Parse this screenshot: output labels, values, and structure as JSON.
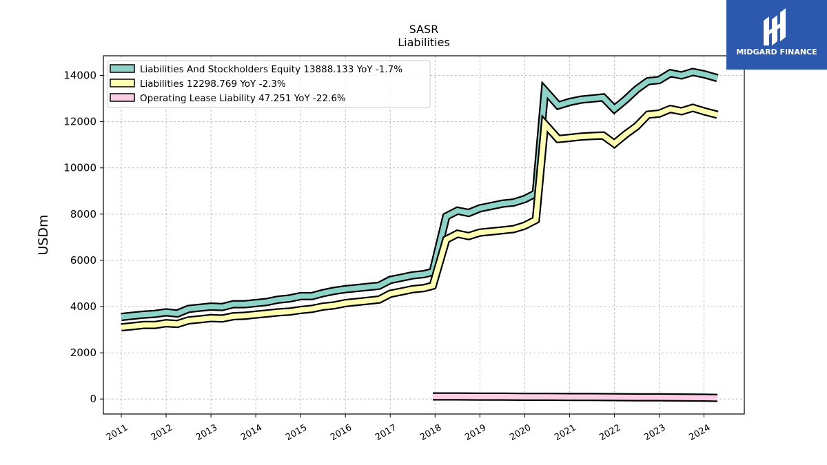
{
  "chart_data": {
    "type": "line",
    "title": "SASR",
    "subtitle": "Liabilities",
    "ylabel": "USDm",
    "xlabel": "",
    "xlim": [
      2010.6,
      2024.9
    ],
    "ylim": [
      -650,
      14850
    ],
    "yticks": [
      0,
      2000,
      4000,
      6000,
      8000,
      10000,
      12000,
      14000
    ],
    "xticks": [
      "2011",
      "2012",
      "2013",
      "2014",
      "2015",
      "2016",
      "2017",
      "2018",
      "2019",
      "2020",
      "2021",
      "2022",
      "2023",
      "2024"
    ],
    "grid": true,
    "legend_position": "top-left",
    "series": [
      {
        "name": "Liabilities And Stockholders Equity",
        "legend_value": "13888.133",
        "legend_yoy": "YoY -1.7%",
        "color": "#8dd3c7",
        "x": [
          2011.0,
          2011.25,
          2011.5,
          2011.75,
          2012.0,
          2012.25,
          2012.5,
          2012.75,
          2013.0,
          2013.25,
          2013.5,
          2013.75,
          2014.0,
          2014.25,
          2014.5,
          2014.75,
          2015.0,
          2015.25,
          2015.5,
          2015.75,
          2016.0,
          2016.25,
          2016.5,
          2016.75,
          2017.0,
          2017.25,
          2017.5,
          2017.75,
          2017.95,
          2018.25,
          2018.5,
          2018.75,
          2019.0,
          2019.25,
          2019.5,
          2019.75,
          2020.0,
          2020.25,
          2020.45,
          2020.75,
          2021.0,
          2021.25,
          2021.5,
          2021.75,
          2022.0,
          2022.25,
          2022.5,
          2022.75,
          2023.0,
          2023.25,
          2023.5,
          2023.75,
          2024.0,
          2024.3
        ],
        "values": [
          3550,
          3600,
          3650,
          3680,
          3750,
          3700,
          3900,
          3950,
          4000,
          3980,
          4100,
          4100,
          4150,
          4200,
          4300,
          4350,
          4450,
          4450,
          4580,
          4680,
          4750,
          4800,
          4850,
          4900,
          5150,
          5250,
          5350,
          5400,
          5500,
          7900,
          8150,
          8050,
          8250,
          8350,
          8450,
          8500,
          8650,
          8900,
          13350,
          12700,
          12850,
          12950,
          13000,
          13050,
          12550,
          12950,
          13400,
          13750,
          13800,
          14100,
          14000,
          14150,
          14050,
          13888
        ]
      },
      {
        "name": "Liabilities",
        "legend_value": "12298.769",
        "legend_yoy": "YoY -2.3%",
        "color": "#ffffb3",
        "x": [
          2011.0,
          2011.25,
          2011.5,
          2011.75,
          2012.0,
          2012.25,
          2012.5,
          2012.75,
          2013.0,
          2013.25,
          2013.5,
          2013.75,
          2014.0,
          2014.25,
          2014.5,
          2014.75,
          2015.0,
          2015.25,
          2015.5,
          2015.75,
          2016.0,
          2016.25,
          2016.5,
          2016.75,
          2017.0,
          2017.25,
          2017.5,
          2017.75,
          2017.95,
          2018.25,
          2018.5,
          2018.75,
          2019.0,
          2019.25,
          2019.5,
          2019.75,
          2020.0,
          2020.25,
          2020.45,
          2020.75,
          2021.0,
          2021.25,
          2021.5,
          2021.75,
          2022.0,
          2022.25,
          2022.5,
          2022.75,
          2023.0,
          2023.25,
          2023.5,
          2023.75,
          2024.0,
          2024.3
        ],
        "values": [
          3100,
          3150,
          3200,
          3200,
          3280,
          3250,
          3400,
          3450,
          3500,
          3480,
          3580,
          3600,
          3650,
          3700,
          3750,
          3780,
          3850,
          3900,
          4000,
          4050,
          4150,
          4200,
          4250,
          4300,
          4550,
          4650,
          4750,
          4800,
          4900,
          6900,
          7150,
          7050,
          7200,
          7250,
          7300,
          7350,
          7500,
          7750,
          11900,
          11250,
          11300,
          11350,
          11380,
          11400,
          11050,
          11450,
          11800,
          12300,
          12350,
          12550,
          12450,
          12600,
          12450,
          12299
        ]
      },
      {
        "name": "Operating Lease Liability",
        "legend_value": "47.251",
        "legend_yoy": "YoY -22.6%",
        "color": "#fccde5",
        "x": [
          2017.95,
          2018.5,
          2019.0,
          2019.5,
          2020.0,
          2020.5,
          2021.0,
          2021.5,
          2022.0,
          2022.5,
          2023.0,
          2023.5,
          2024.0,
          2024.3
        ],
        "values": [
          110,
          110,
          105,
          100,
          95,
          95,
          90,
          85,
          80,
          75,
          70,
          65,
          55,
          47
        ]
      }
    ]
  },
  "legend": {
    "entries": [
      "Liabilities And Stockholders Equity  13888.133 YoY -1.7%",
      "Liabilities  12298.769 YoY -2.3%",
      "Operating Lease Liability  47.251 YoY -22.6%"
    ]
  },
  "logo": {
    "text": "MIDGARD FINANCE",
    "color": "#2c58ad"
  }
}
